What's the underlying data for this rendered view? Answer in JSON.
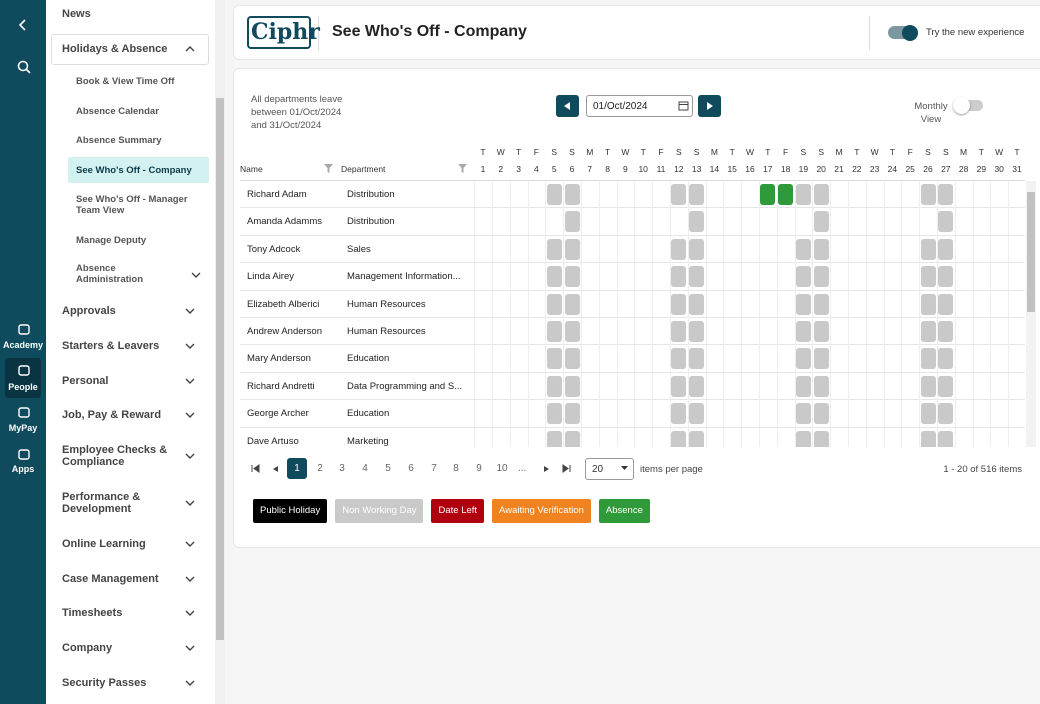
{
  "rail": {
    "items": [
      "Academy",
      "People",
      "MyPay",
      "Apps"
    ]
  },
  "menu": [
    {
      "label": "News"
    },
    {
      "label": "Holidays & Absence",
      "children": [
        "Book & View Time Off",
        "Absence Calendar",
        "Absence Summary",
        "See Who's Off - Company",
        "See Who's Off - Manager Team View",
        "Manage Deputy",
        "Absence Administration"
      ]
    },
    {
      "label": "Approvals"
    },
    {
      "label": "Starters & Leavers"
    },
    {
      "label": "Personal"
    },
    {
      "label": "Job, Pay & Reward"
    },
    {
      "label": "Employee Checks & Compliance"
    },
    {
      "label": "Performance & Development"
    },
    {
      "label": "Online Learning"
    },
    {
      "label": "Case Management"
    },
    {
      "label": "Timesheets"
    },
    {
      "label": "Company"
    },
    {
      "label": "Security Passes"
    }
  ],
  "header": {
    "logo": "Ciphr",
    "title": "See Who's Off - Company",
    "toggle_label": "Try the new experience"
  },
  "filters": {
    "summary": "All departments leave between 01/Oct/2024 and 31/Oct/2024",
    "date": "01/Oct/2024",
    "view_toggle": "Monthly View"
  },
  "grid": {
    "columns": [
      "Name",
      "Department"
    ],
    "days": [
      {
        "weekday": "T",
        "day": 1
      },
      {
        "weekday": "W",
        "day": 2
      },
      {
        "weekday": "T",
        "day": 3
      },
      {
        "weekday": "F",
        "day": 4
      },
      {
        "weekday": "S",
        "day": 5
      },
      {
        "weekday": "S",
        "day": 6
      },
      {
        "weekday": "M",
        "day": 7
      },
      {
        "weekday": "T",
        "day": 8
      },
      {
        "weekday": "W",
        "day": 9
      },
      {
        "weekday": "T",
        "day": 10
      },
      {
        "weekday": "F",
        "day": 11
      },
      {
        "weekday": "S",
        "day": 12
      },
      {
        "weekday": "S",
        "day": 13
      },
      {
        "weekday": "M",
        "day": 14
      },
      {
        "weekday": "T",
        "day": 15
      },
      {
        "weekday": "W",
        "day": 16
      },
      {
        "weekday": "T",
        "day": 17
      },
      {
        "weekday": "F",
        "day": 18
      },
      {
        "weekday": "S",
        "day": 19
      },
      {
        "weekday": "S",
        "day": 20
      },
      {
        "weekday": "M",
        "day": 21
      },
      {
        "weekday": "T",
        "day": 22
      },
      {
        "weekday": "W",
        "day": 23
      },
      {
        "weekday": "T",
        "day": 24
      },
      {
        "weekday": "F",
        "day": 25
      },
      {
        "weekday": "S",
        "day": 26
      },
      {
        "weekday": "S",
        "day": 27
      },
      {
        "weekday": "M",
        "day": 28
      },
      {
        "weekday": "T",
        "day": 29
      },
      {
        "weekday": "W",
        "day": 30
      },
      {
        "weekday": "T",
        "day": 31
      }
    ],
    "rows": [
      {
        "name": "Richard Adam",
        "department": "Distribution",
        "non_working_days": [
          5,
          6,
          12,
          13,
          19,
          20,
          26,
          27
        ],
        "absence_days": [
          17,
          18
        ]
      },
      {
        "name": "Amanda Adamms",
        "department": "Distribution",
        "non_working_days": [
          6,
          13,
          20,
          27
        ],
        "absence_days": []
      },
      {
        "name": "Tony Adcock",
        "department": "Sales",
        "non_working_days": [
          5,
          6,
          12,
          13,
          19,
          20,
          26,
          27
        ],
        "absence_days": []
      },
      {
        "name": "Linda Airey",
        "department": "Management Information...",
        "non_working_days": [
          5,
          6,
          12,
          13,
          19,
          20,
          26,
          27
        ],
        "absence_days": []
      },
      {
        "name": "Elizabeth Alberici",
        "department": "Human Resources",
        "non_working_days": [
          5,
          6,
          12,
          13,
          19,
          20,
          26,
          27
        ],
        "absence_days": []
      },
      {
        "name": "Andrew Anderson",
        "department": "Human Resources",
        "non_working_days": [
          5,
          6,
          12,
          13,
          19,
          20,
          26,
          27
        ],
        "absence_days": []
      },
      {
        "name": "Mary Anderson",
        "department": "Education",
        "non_working_days": [
          5,
          6,
          12,
          13,
          19,
          20,
          26,
          27
        ],
        "absence_days": []
      },
      {
        "name": "Richard Andretti",
        "department": "Data Programming and S...",
        "non_working_days": [
          5,
          6,
          12,
          13,
          19,
          20,
          26,
          27
        ],
        "absence_days": []
      },
      {
        "name": "George Archer",
        "department": "Education",
        "non_working_days": [
          5,
          6,
          12,
          13,
          19,
          20,
          26,
          27
        ],
        "absence_days": []
      },
      {
        "name": "Dave Artuso",
        "department": "Marketing",
        "non_working_days": [
          5,
          6,
          12,
          13,
          19,
          20,
          26,
          27
        ],
        "absence_days": []
      }
    ]
  },
  "pagination": {
    "pages": [
      1,
      2,
      3,
      4,
      5,
      6,
      7,
      8,
      9,
      10
    ],
    "current_page": 1,
    "ellipsis": "...",
    "page_size": 20,
    "page_size_label": "items per page",
    "summary": "1 - 20 of 516 items"
  },
  "legend": [
    {
      "label": "Public Holiday",
      "color": "#000000"
    },
    {
      "label": "Non Working Day",
      "color": "#c9c9c9"
    },
    {
      "label": "Date Left",
      "color": "#b00010"
    },
    {
      "label": "Awaiting Verification",
      "color": "#f0831f"
    },
    {
      "label": "Absence",
      "color": "#2f9a3a"
    }
  ]
}
